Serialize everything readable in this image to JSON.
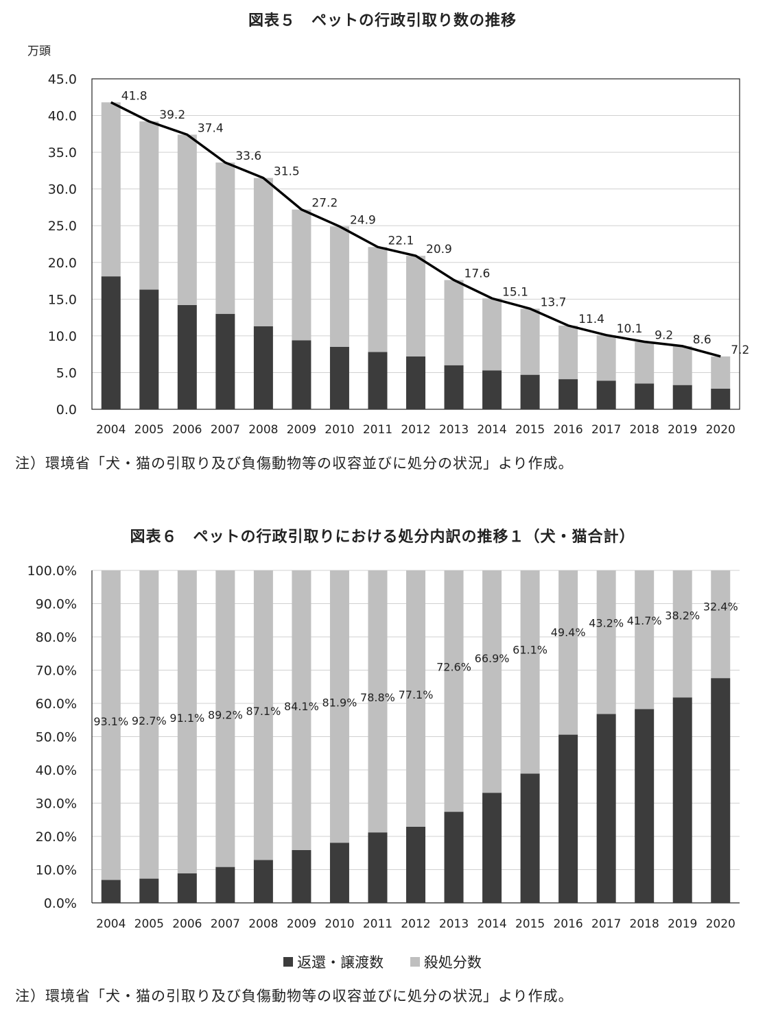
{
  "chart5": {
    "title": "図表５　ペットの行政引取り数の推移",
    "unit": "万頭",
    "note": "注）環境省「犬・猫の引取り及び負傷動物等の収容並びに処分の状況」より作成。"
  },
  "chart6": {
    "title": "図表６　ペットの行政引取りにおける処分内訳の推移１（犬・猫合計）",
    "note": "注）環境省「犬・猫の引取り及び負傷動物等の収容並びに処分の状況」より作成。",
    "legend": [
      "返還・譲渡数",
      "殺処分数"
    ]
  },
  "colors": {
    "dark": "#3c3c3c",
    "light": "#bfbfbf",
    "line": "#000000",
    "grid": "#d0d0d0"
  },
  "chart_data": [
    {
      "type": "bar",
      "stacked": true,
      "categories": [
        "2004",
        "2005",
        "2006",
        "2007",
        "2008",
        "2009",
        "2010",
        "2011",
        "2012",
        "2013",
        "2014",
        "2015",
        "2016",
        "2017",
        "2018",
        "2019",
        "2020"
      ],
      "ylim": [
        0,
        45
      ],
      "yticks": [
        "0.0",
        "5.0",
        "10.0",
        "15.0",
        "20.0",
        "25.0",
        "30.0",
        "35.0",
        "40.0",
        "45.0"
      ],
      "series": [
        {
          "values": [
            18.1,
            16.3,
            14.2,
            13.0,
            11.3,
            9.4,
            8.5,
            7.8,
            7.2,
            6.0,
            5.3,
            4.7,
            4.1,
            3.9,
            3.5,
            3.3,
            2.8
          ]
        },
        {
          "values": [
            23.7,
            22.9,
            23.2,
            20.6,
            20.2,
            17.8,
            16.4,
            14.3,
            13.7,
            11.6,
            9.8,
            9.0,
            7.3,
            6.2,
            5.7,
            5.3,
            4.4
          ]
        }
      ],
      "total_line": [
        41.8,
        39.2,
        37.4,
        33.6,
        31.5,
        27.2,
        24.9,
        22.1,
        20.9,
        17.6,
        15.1,
        13.7,
        11.4,
        10.1,
        9.2,
        8.6,
        7.2
      ],
      "total_labels": [
        "41.8",
        "39.2",
        "37.4",
        "33.6",
        "31.5",
        "27.2",
        "24.9",
        "22.1",
        "20.9",
        "17.6",
        "15.1",
        "13.7",
        "11.4",
        "10.1",
        "9.2",
        "8.6",
        "7.2"
      ]
    },
    {
      "type": "bar",
      "stacked": true,
      "percent": true,
      "categories": [
        "2004",
        "2005",
        "2006",
        "2007",
        "2008",
        "2009",
        "2010",
        "2011",
        "2012",
        "2013",
        "2014",
        "2015",
        "2016",
        "2017",
        "2018",
        "2019",
        "2020"
      ],
      "ylim": [
        0,
        100
      ],
      "yticks": [
        "0.0%",
        "10.0%",
        "20.0%",
        "30.0%",
        "40.0%",
        "50.0%",
        "60.0%",
        "70.0%",
        "80.0%",
        "90.0%",
        "100.0%"
      ],
      "series": [
        {
          "name": "返還・譲渡数",
          "values": [
            6.9,
            7.3,
            8.9,
            10.8,
            12.9,
            15.9,
            18.1,
            21.2,
            22.9,
            27.4,
            33.1,
            38.9,
            50.6,
            56.8,
            58.3,
            61.8,
            67.6
          ]
        },
        {
          "name": "殺処分数",
          "values": [
            93.1,
            92.7,
            91.1,
            89.2,
            87.1,
            84.1,
            81.9,
            78.8,
            77.1,
            72.6,
            66.9,
            61.1,
            49.4,
            43.2,
            41.7,
            38.2,
            32.4
          ]
        }
      ],
      "kill_labels": [
        "93.1%",
        "92.7%",
        "91.1%",
        "89.2%",
        "87.1%",
        "84.1%",
        "81.9%",
        "78.8%",
        "77.1%",
        "72.6%",
        "66.9%",
        "61.1%",
        "49.4%",
        "43.2%",
        "41.7%",
        "38.2%",
        "32.4%"
      ]
    }
  ]
}
